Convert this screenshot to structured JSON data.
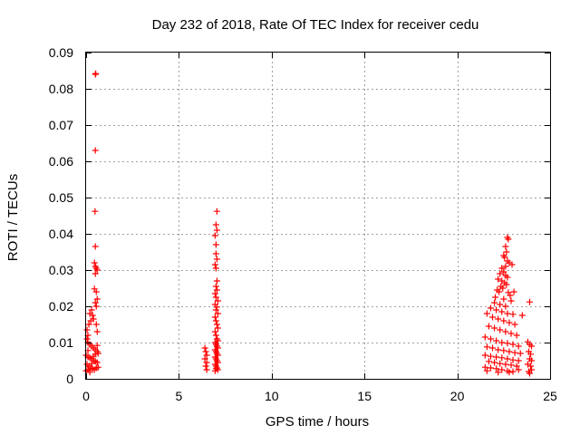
{
  "chart_data": {
    "type": "scatter",
    "title": "Day 232 of 2018, Rate Of TEC Index for receiver cedu",
    "xlabel": "GPS time / hours",
    "ylabel": "ROTI / TECUs",
    "xlim": [
      0,
      25
    ],
    "ylim": [
      0,
      0.09
    ],
    "grid": true,
    "marker": "+",
    "marker_color": "#ff0000",
    "x_ticks": [
      {
        "value": 0,
        "label": "0"
      },
      {
        "value": 5,
        "label": "5"
      },
      {
        "value": 10,
        "label": "10"
      },
      {
        "value": 15,
        "label": "15"
      },
      {
        "value": 20,
        "label": "20"
      },
      {
        "value": 25,
        "label": "25"
      }
    ],
    "y_ticks": [
      {
        "value": 0,
        "label": "0"
      },
      {
        "value": 0.01,
        "label": "0.01"
      },
      {
        "value": 0.02,
        "label": "0.02"
      },
      {
        "value": 0.03,
        "label": "0.03"
      },
      {
        "value": 0.04,
        "label": "0.04"
      },
      {
        "value": 0.05,
        "label": "0.05"
      },
      {
        "value": 0.06,
        "label": "0.06"
      },
      {
        "value": 0.07,
        "label": "0.07"
      },
      {
        "value": 0.08,
        "label": "0.08"
      },
      {
        "value": 0.09,
        "label": "0.09"
      }
    ],
    "series": [
      {
        "name": "ROTI",
        "points": [
          [
            0.5,
            0.084
          ],
          [
            0.52,
            0.0842
          ],
          [
            0.5,
            0.063
          ],
          [
            0.48,
            0.0462
          ],
          [
            0.5,
            0.0365
          ],
          [
            0.45,
            0.032
          ],
          [
            0.5,
            0.031
          ],
          [
            0.55,
            0.0305
          ],
          [
            0.6,
            0.03
          ],
          [
            0.5,
            0.029
          ],
          [
            0.45,
            0.0248
          ],
          [
            0.55,
            0.024
          ],
          [
            0.6,
            0.022
          ],
          [
            0.5,
            0.021
          ],
          [
            0.55,
            0.02
          ],
          [
            0.3,
            0.019
          ],
          [
            0.2,
            0.018
          ],
          [
            0.35,
            0.0175
          ],
          [
            0.25,
            0.016
          ],
          [
            0.15,
            0.015
          ],
          [
            0.05,
            0.0135
          ],
          [
            0.1,
            0.012
          ],
          [
            0.4,
            0.0165
          ],
          [
            0.55,
            0.015
          ],
          [
            0.6,
            0.013
          ],
          [
            0.05,
            0.011
          ],
          [
            0.1,
            0.01
          ],
          [
            0.2,
            0.0095
          ],
          [
            0.3,
            0.009
          ],
          [
            0.4,
            0.0085
          ],
          [
            0.5,
            0.008
          ],
          [
            0.6,
            0.0075
          ],
          [
            0.65,
            0.007
          ],
          [
            0.0,
            0.0065
          ],
          [
            0.1,
            0.006
          ],
          [
            0.2,
            0.0058
          ],
          [
            0.3,
            0.0055
          ],
          [
            0.4,
            0.005
          ],
          [
            0.5,
            0.0048
          ],
          [
            0.6,
            0.0045
          ],
          [
            0.05,
            0.004
          ],
          [
            0.15,
            0.0035
          ],
          [
            0.25,
            0.003
          ],
          [
            0.35,
            0.0028
          ],
          [
            0.45,
            0.0025
          ],
          [
            0.55,
            0.003
          ],
          [
            0.65,
            0.0032
          ],
          [
            0.0,
            0.0022
          ],
          [
            0.1,
            0.0025
          ],
          [
            0.2,
            0.0018
          ],
          [
            0.3,
            0.0042
          ],
          [
            0.4,
            0.0062
          ],
          [
            0.5,
            0.0068
          ],
          [
            0.6,
            0.0092
          ],
          [
            0.1,
            0.0078
          ],
          [
            6.4,
            0.0085
          ],
          [
            6.45,
            0.0075
          ],
          [
            6.5,
            0.0065
          ],
          [
            6.4,
            0.0055
          ],
          [
            6.5,
            0.0045
          ],
          [
            6.45,
            0.0035
          ],
          [
            6.5,
            0.0025
          ],
          [
            7.05,
            0.0462
          ],
          [
            7.0,
            0.0425
          ],
          [
            7.05,
            0.041
          ],
          [
            6.95,
            0.0395
          ],
          [
            7.0,
            0.037
          ],
          [
            7.0,
            0.0345
          ],
          [
            7.05,
            0.033
          ],
          [
            6.95,
            0.0315
          ],
          [
            7.0,
            0.0305
          ],
          [
            7.05,
            0.027
          ],
          [
            7.0,
            0.0255
          ],
          [
            7.05,
            0.0245
          ],
          [
            6.95,
            0.0235
          ],
          [
            7.0,
            0.0225
          ],
          [
            7.1,
            0.0215
          ],
          [
            6.95,
            0.0205
          ],
          [
            7.05,
            0.0198
          ],
          [
            7.0,
            0.019
          ],
          [
            7.1,
            0.018
          ],
          [
            6.95,
            0.017
          ],
          [
            7.0,
            0.016
          ],
          [
            7.05,
            0.015
          ],
          [
            7.1,
            0.014
          ],
          [
            6.95,
            0.013
          ],
          [
            7.0,
            0.012
          ],
          [
            7.05,
            0.011
          ],
          [
            7.1,
            0.0105
          ],
          [
            6.95,
            0.01
          ],
          [
            7.0,
            0.0095
          ],
          [
            7.05,
            0.009
          ],
          [
            7.1,
            0.0085
          ],
          [
            6.95,
            0.008
          ],
          [
            7.0,
            0.0075
          ],
          [
            7.05,
            0.007
          ],
          [
            7.1,
            0.0065
          ],
          [
            6.95,
            0.006
          ],
          [
            7.0,
            0.0055
          ],
          [
            7.05,
            0.005
          ],
          [
            7.1,
            0.0045
          ],
          [
            6.95,
            0.004
          ],
          [
            7.0,
            0.0035
          ],
          [
            7.05,
            0.003
          ],
          [
            7.1,
            0.0025
          ],
          [
            6.95,
            0.0022
          ],
          [
            7.0,
            0.0028
          ],
          [
            22.7,
            0.039
          ],
          [
            22.75,
            0.0385
          ],
          [
            22.6,
            0.0365
          ],
          [
            22.65,
            0.035
          ],
          [
            22.5,
            0.034
          ],
          [
            22.55,
            0.0335
          ],
          [
            22.7,
            0.0325
          ],
          [
            22.8,
            0.032
          ],
          [
            22.6,
            0.031
          ],
          [
            22.4,
            0.0305
          ],
          [
            22.5,
            0.0295
          ],
          [
            22.3,
            0.029
          ],
          [
            22.6,
            0.0285
          ],
          [
            22.7,
            0.028
          ],
          [
            22.2,
            0.0275
          ],
          [
            22.4,
            0.027
          ],
          [
            22.55,
            0.0265
          ],
          [
            22.65,
            0.026
          ],
          [
            22.35,
            0.0255
          ],
          [
            22.45,
            0.025
          ],
          [
            22.15,
            0.0245
          ],
          [
            22.25,
            0.024
          ],
          [
            22.75,
            0.0238
          ],
          [
            22.85,
            0.023
          ],
          [
            22.05,
            0.0225
          ],
          [
            22.5,
            0.022
          ],
          [
            22.9,
            0.0215
          ],
          [
            22.0,
            0.021
          ],
          [
            22.3,
            0.0205
          ],
          [
            22.6,
            0.02
          ],
          [
            23.9,
            0.0212
          ],
          [
            21.8,
            0.0195
          ],
          [
            22.1,
            0.019
          ],
          [
            22.4,
            0.0185
          ],
          [
            22.7,
            0.018
          ],
          [
            23.0,
            0.0178
          ],
          [
            23.5,
            0.0175
          ],
          [
            21.6,
            0.018
          ],
          [
            21.9,
            0.017
          ],
          [
            22.2,
            0.0165
          ],
          [
            22.5,
            0.016
          ],
          [
            22.8,
            0.0155
          ],
          [
            23.1,
            0.015
          ],
          [
            21.7,
            0.0145
          ],
          [
            22.0,
            0.014
          ],
          [
            22.3,
            0.0135
          ],
          [
            22.6,
            0.013
          ],
          [
            22.9,
            0.0125
          ],
          [
            23.2,
            0.012
          ],
          [
            21.5,
            0.0115
          ],
          [
            21.8,
            0.011
          ],
          [
            22.1,
            0.0105
          ],
          [
            22.4,
            0.01
          ],
          [
            22.7,
            0.0098
          ],
          [
            23.0,
            0.0095
          ],
          [
            23.3,
            0.009
          ],
          [
            23.8,
            0.0102
          ],
          [
            23.9,
            0.0095
          ],
          [
            24.0,
            0.009
          ],
          [
            21.6,
            0.0088
          ],
          [
            21.9,
            0.0085
          ],
          [
            22.2,
            0.008
          ],
          [
            22.5,
            0.0078
          ],
          [
            22.8,
            0.0075
          ],
          [
            23.1,
            0.0072
          ],
          [
            23.4,
            0.007
          ],
          [
            23.85,
            0.0075
          ],
          [
            23.95,
            0.0068
          ],
          [
            21.5,
            0.0065
          ],
          [
            21.8,
            0.0062
          ],
          [
            22.1,
            0.006
          ],
          [
            22.4,
            0.0058
          ],
          [
            22.7,
            0.0055
          ],
          [
            23.0,
            0.0052
          ],
          [
            23.3,
            0.005
          ],
          [
            23.9,
            0.0055
          ],
          [
            24.0,
            0.005
          ],
          [
            21.7,
            0.0048
          ],
          [
            22.0,
            0.0045
          ],
          [
            22.3,
            0.0042
          ],
          [
            22.6,
            0.004
          ],
          [
            22.9,
            0.0038
          ],
          [
            23.2,
            0.0035
          ],
          [
            23.8,
            0.004
          ],
          [
            23.95,
            0.0035
          ],
          [
            21.5,
            0.0032
          ],
          [
            21.8,
            0.003
          ],
          [
            22.1,
            0.0028
          ],
          [
            22.4,
            0.0025
          ],
          [
            22.7,
            0.0022
          ],
          [
            23.0,
            0.002
          ],
          [
            23.3,
            0.0025
          ],
          [
            23.85,
            0.002
          ],
          [
            24.0,
            0.0025
          ],
          [
            21.6,
            0.0022
          ],
          [
            22.2,
            0.0018
          ],
          [
            22.8,
            0.0018
          ],
          [
            23.9,
            0.0015
          ],
          [
            22.95,
            0.0315
          ],
          [
            23.05,
            0.024
          ]
        ]
      }
    ]
  }
}
